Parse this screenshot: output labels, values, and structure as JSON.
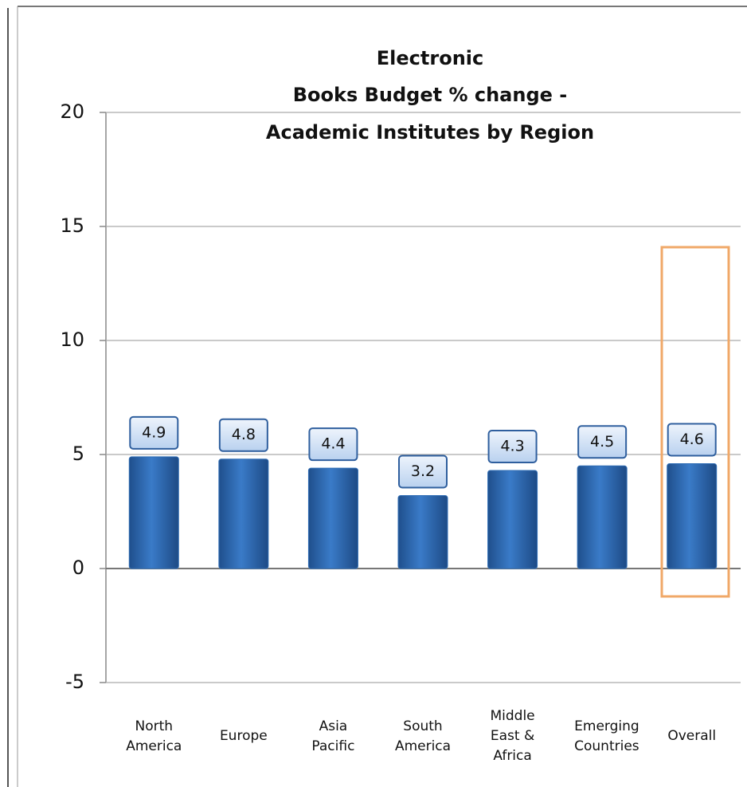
{
  "chart_data": {
    "type": "bar",
    "title": [
      "Electronic",
      "Books Budget % change -",
      "Academic Institutes by Region"
    ],
    "categories": [
      "North America",
      "Europe",
      "Asia Pacific",
      "South America",
      "Middle East & Africa",
      "Emerging Countries",
      "Overall"
    ],
    "values": [
      4.9,
      4.8,
      4.4,
      3.2,
      4.3,
      4.5,
      4.6
    ],
    "color": "#2f6db5",
    "ylim": [
      -5,
      20
    ],
    "yticks": [
      -5,
      0,
      5,
      10,
      15,
      20
    ],
    "grid": true
  }
}
